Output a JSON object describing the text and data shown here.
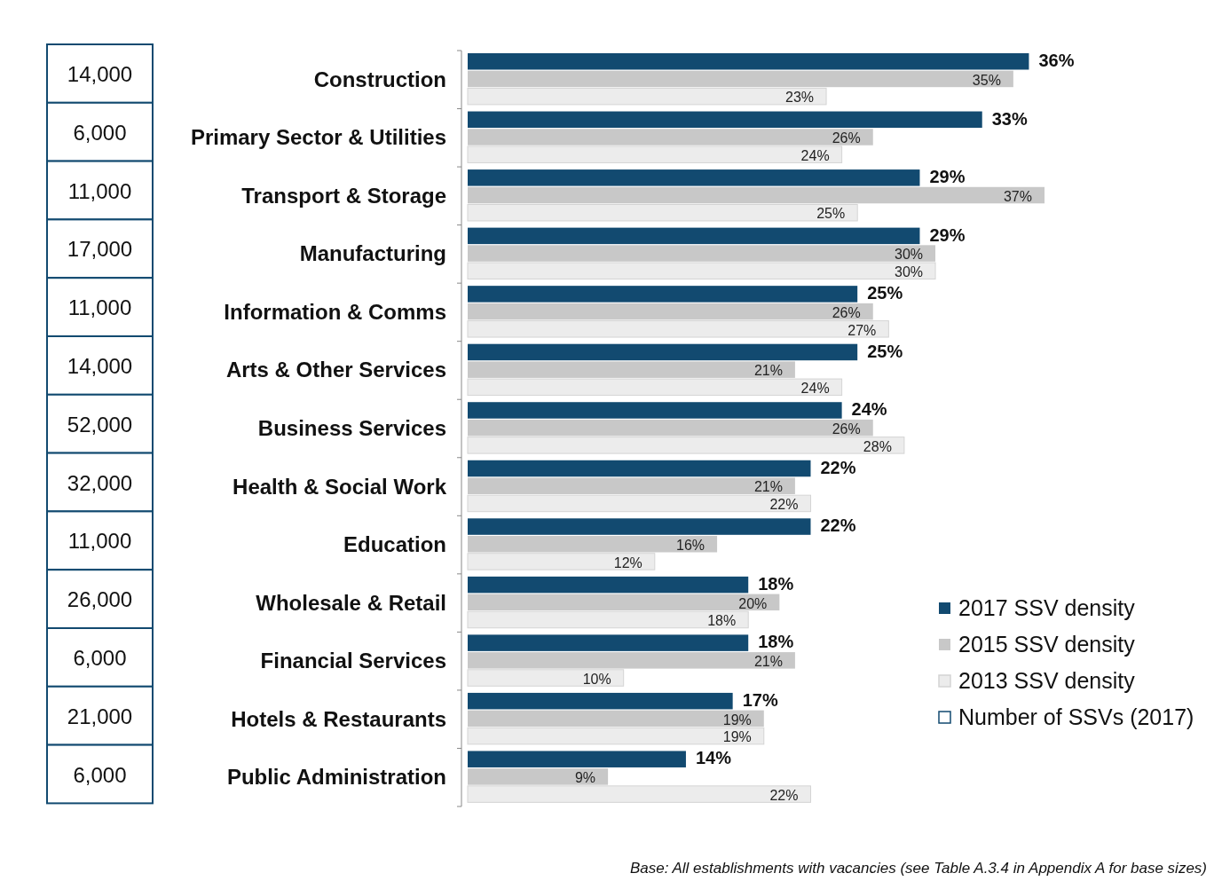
{
  "chart_data": [
    {
      "type": "other",
      "legend": "bottom right",
      "series": [
        {
          "name": "Number of SSVs (2017)",
          "color": "#ffffff",
          "values": [
            14000,
            6000,
            11000,
            17000,
            11000,
            14000,
            52000,
            32000,
            11000,
            26000,
            6000,
            21000,
            6000
          ],
          "value_labels": [
            "14,000",
            "6,000",
            "11,000",
            "17,000",
            "11,000",
            "14,000",
            "52,000",
            "32,000",
            "11,000",
            "26,000",
            "6,000",
            "21,000",
            "6,000"
          ]
        }
      ]
    },
    {
      "type": "bar",
      "orientation": "horizontal",
      "tick_labels": "y",
      "legend": "bottom right",
      "categories": [
        "Construction",
        "Primary Sector & Utilities",
        "Transport & Storage",
        "Manufacturing",
        "Information & Comms",
        "Arts & Other Services",
        "Business Services",
        "Health & Social Work",
        "Education",
        "Wholesale & Retail",
        "Financial Services",
        "Hotels & Restaurants",
        "Public Administration"
      ],
      "xlim": [
        0,
        37
      ],
      "series": [
        {
          "name": "2017 SSV density",
          "color": "#124a70",
          "values": [
            36,
            33,
            29,
            29,
            25,
            25,
            24,
            22,
            22,
            18,
            18,
            17,
            14
          ],
          "value_labels": [
            "36%",
            "33%",
            "29%",
            "29%",
            "25%",
            "25%",
            "24%",
            "22%",
            "22%",
            "18%",
            "18%",
            "17%",
            "14%"
          ]
        },
        {
          "name": "2015 SSV density",
          "color": "#c8c8c8",
          "values": [
            35,
            26,
            37,
            30,
            26,
            21,
            26,
            21,
            16,
            20,
            21,
            19,
            9
          ],
          "value_labels": [
            "35%",
            "26%",
            "37%",
            "30%",
            "26%",
            "21%",
            "26%",
            "21%",
            "16%",
            "20%",
            "21%",
            "19%",
            "9%"
          ]
        },
        {
          "name": "2013 SSV density",
          "color": "#ececec",
          "values": [
            23,
            24,
            25,
            30,
            27,
            24,
            28,
            22,
            12,
            18,
            10,
            19,
            22
          ],
          "value_labels": [
            "23%",
            "24%",
            "25%",
            "30%",
            "27%",
            "24%",
            "28%",
            "22%",
            "12%",
            "18%",
            "10%",
            "19%",
            "22%"
          ]
        }
      ],
      "annotations": [
        "Base: All establishments with vacancies (see Table A.3.4 in Appendix A for base sizes)"
      ]
    }
  ]
}
